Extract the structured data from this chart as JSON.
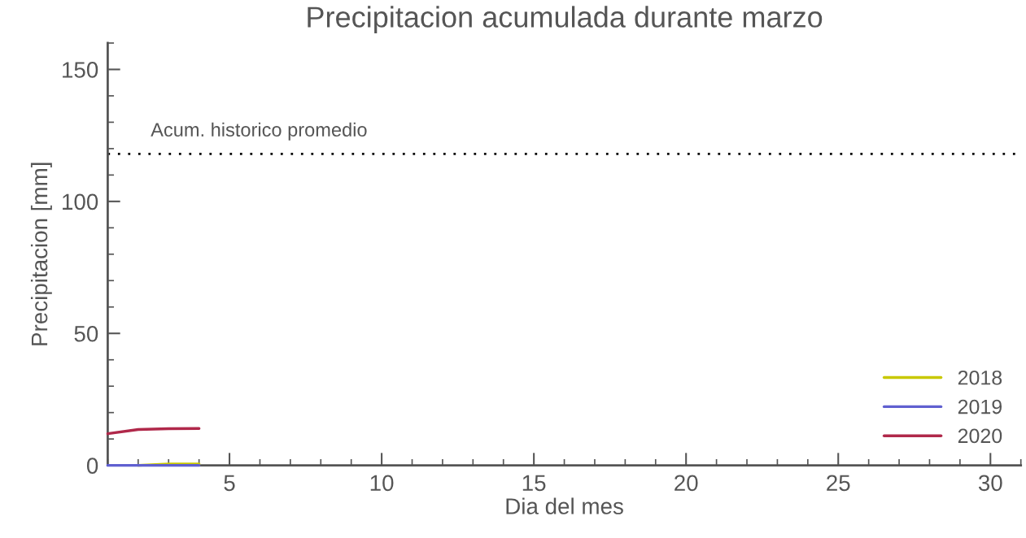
{
  "chart_data": {
    "type": "line",
    "title": "Precipitacion acumulada durante marzo",
    "xlabel": "Dia del mes",
    "ylabel": "Precipitacion [mm]",
    "x": [
      1,
      2,
      3,
      4
    ],
    "series": [
      {
        "name": "2018",
        "color": "#c8c800",
        "values": [
          null,
          0,
          0.5,
          0.5
        ]
      },
      {
        "name": "2019",
        "color": "#6060d0",
        "values": [
          0,
          0,
          0,
          0
        ]
      },
      {
        "name": "2020",
        "color": "#b0284a",
        "values": [
          12,
          13.6,
          13.9,
          14
        ]
      }
    ],
    "xlim": [
      1,
      31
    ],
    "xticks": [
      5,
      10,
      15,
      20,
      25,
      30
    ],
    "ylim": [
      0,
      160
    ],
    "yticks": [
      0,
      50,
      100,
      150
    ],
    "ref_lines": [
      {
        "axis": "y",
        "value": 118,
        "label": "Acum. historico promedio",
        "color": "#000000",
        "line_style": "dotted"
      }
    ],
    "legend": "bottom right",
    "grid": false,
    "marker": "none",
    "line_style": "solid"
  }
}
